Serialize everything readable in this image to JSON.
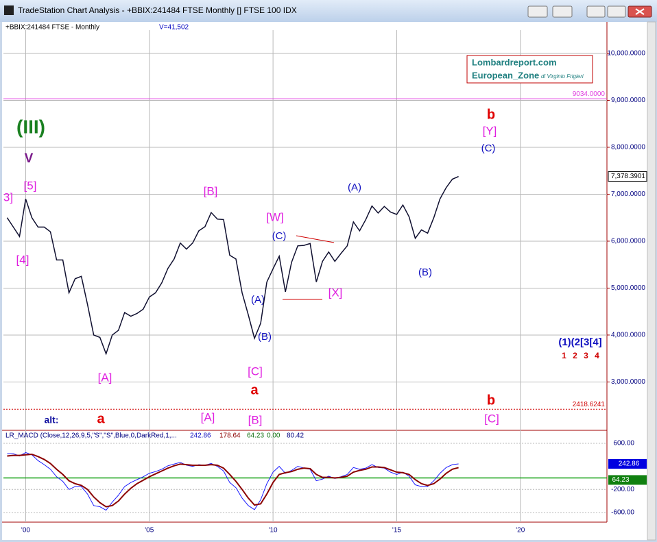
{
  "window": {
    "title": "TradeStation Chart Analysis - +BBIX:241484 FTSE Monthly [] FTSE 100 IDX"
  },
  "chart_data": {
    "type": "line",
    "symbol": "+BBIX:241484 FTSE - Monthly",
    "volume": "V=41,502",
    "box": {
      "site": "Lombardreport.com",
      "zone": "European_Zone",
      "author": "di Virginio Frigieri"
    },
    "x": [
      1999.25,
      1999.5,
      1999.75,
      2000,
      2000.25,
      2000.5,
      2000.75,
      2001,
      2001.25,
      2001.5,
      2001.75,
      2002,
      2002.25,
      2002.5,
      2002.75,
      2003,
      2003.25,
      2003.5,
      2003.75,
      2004,
      2004.25,
      2004.5,
      2004.75,
      2005,
      2005.25,
      2005.5,
      2005.75,
      2006,
      2006.25,
      2006.5,
      2006.75,
      2007,
      2007.25,
      2007.5,
      2007.75,
      2008,
      2008.25,
      2008.5,
      2008.75,
      2009,
      2009.25,
      2009.5,
      2009.75,
      2010,
      2010.25,
      2010.5,
      2010.75,
      2011,
      2011.25,
      2011.5,
      2011.75,
      2012,
      2012.25,
      2012.5,
      2012.75,
      2013,
      2013.25,
      2013.5,
      2013.75,
      2014,
      2014.25,
      2014.5,
      2014.75,
      2015,
      2015.25,
      2015.5,
      2015.75,
      2016,
      2016.25,
      2016.5,
      2016.75,
      2017,
      2017.25,
      2017.5
    ],
    "series": [
      {
        "name": "FTSE",
        "color": "#101030",
        "values": [
          6500,
          6300,
          6100,
          6900,
          6500,
          6300,
          6300,
          6200,
          5600,
          5600,
          4900,
          5200,
          5250,
          4650,
          4000,
          3950,
          3600,
          4000,
          4100,
          4480,
          4400,
          4460,
          4550,
          4810,
          4900,
          5110,
          5420,
          5620,
          5960,
          5830,
          5960,
          6220,
          6310,
          6610,
          6470,
          6460,
          5700,
          5620,
          4900,
          4430,
          3930,
          4250,
          5130,
          5410,
          5680,
          4920,
          5550,
          5900,
          5910,
          5950,
          5130,
          5570,
          5770,
          5570,
          5740,
          5900,
          6410,
          6220,
          6460,
          6750,
          6600,
          6740,
          6620,
          6570,
          6770,
          6520,
          6060,
          6240,
          6170,
          6500,
          6900,
          7140,
          7320,
          7378.3901
        ]
      }
    ],
    "last_label": "7,378.3901",
    "xlim": [
      1999.1,
      2023.5
    ],
    "xticks": [
      {
        "value": 2000,
        "label": "'00"
      },
      {
        "value": 2005,
        "label": "'05"
      },
      {
        "value": 2010,
        "label": "'10"
      },
      {
        "value": 2015,
        "label": "'15"
      },
      {
        "value": 2020,
        "label": "'20"
      }
    ],
    "ylim": [
      1970,
      10700
    ],
    "yticks": [
      {
        "value": 3000,
        "label": "3,000.0000"
      },
      {
        "value": 4000,
        "label": "4,000.0000"
      },
      {
        "value": 5000,
        "label": "5,000.0000"
      },
      {
        "value": 6000,
        "label": "6,000.0000"
      },
      {
        "value": 7000,
        "label": "7,000.0000"
      },
      {
        "value": 8000,
        "label": "8,000.0000"
      },
      {
        "value": 9000,
        "label": "9,000.0000"
      },
      {
        "value": 10000,
        "label": "10,000.0000"
      }
    ],
    "levels": [
      {
        "value": 9034,
        "label": "9034.0000",
        "color": "#e040e0"
      },
      {
        "value": 2418.6241,
        "label": "2418.6241",
        "color": "#d00000"
      }
    ],
    "grid": true,
    "annotations": [
      "(III)",
      "V",
      "[5]",
      "3]",
      "[4]",
      "[A]",
      "a",
      "alt:",
      "[B]",
      "[A]",
      "[B]",
      "[C]",
      "a",
      "(A)",
      "(B)",
      "(C)",
      "[W]",
      "[X]",
      "(A)",
      "(B)",
      "b",
      "[Y]",
      "(C)",
      "b",
      "[C]",
      "(1)(2[3[4]",
      "1 2 3 4"
    ],
    "macd": {
      "header": "LR_MACD (Close,12,26,9,5,\"S\",\"S\",Blue,0,DarkRed,1,...",
      "readout": [
        "242.86",
        "178.64",
        "64.23",
        "0.00",
        "80.42"
      ],
      "ylim": [
        -767,
        778
      ],
      "yticks": [
        {
          "value": 600,
          "label": "600.00"
        },
        {
          "value": -200,
          "label": "-200.00"
        },
        {
          "value": -600,
          "label": "-600.00"
        }
      ],
      "series": [
        {
          "name": "MACD",
          "color": "#1a1aff",
          "values": [
            420,
            420,
            380,
            440,
            400,
            300,
            230,
            150,
            20,
            -60,
            -200,
            -150,
            -150,
            -280,
            -480,
            -500,
            -560,
            -420,
            -300,
            -150,
            -80,
            -30,
            20,
            80,
            110,
            150,
            210,
            240,
            270,
            220,
            200,
            230,
            220,
            250,
            200,
            120,
            -80,
            -170,
            -350,
            -480,
            -550,
            -380,
            -100,
            100,
            200,
            80,
            130,
            200,
            170,
            150,
            -50,
            -20,
            30,
            -10,
            20,
            60,
            180,
            150,
            170,
            230,
            180,
            170,
            100,
            60,
            100,
            30,
            -120,
            -150,
            -150,
            -50,
            80,
            180,
            230,
            242.86
          ],
          "value_label": "242.86"
        },
        {
          "name": "MACDAvg",
          "color": "#8b0000",
          "values": [
            380,
            390,
            390,
            400,
            410,
            370,
            320,
            250,
            150,
            60,
            -50,
            -100,
            -130,
            -200,
            -330,
            -430,
            -500,
            -480,
            -400,
            -280,
            -180,
            -100,
            -40,
            20,
            70,
            120,
            170,
            210,
            240,
            230,
            220,
            220,
            220,
            230,
            220,
            170,
            60,
            -60,
            -200,
            -350,
            -470,
            -450,
            -280,
            -80,
            60,
            90,
            110,
            150,
            170,
            160,
            60,
            10,
            10,
            0,
            10,
            30,
            100,
            130,
            150,
            190,
            190,
            180,
            140,
            100,
            90,
            60,
            -30,
            -100,
            -130,
            -100,
            -20,
            80,
            150,
            178.64
          ]
        }
      ],
      "diff_label": "64.23"
    }
  }
}
